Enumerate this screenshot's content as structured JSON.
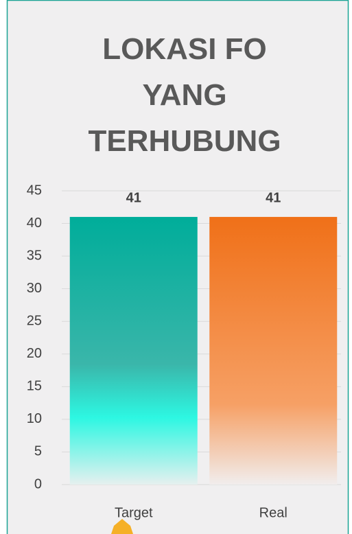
{
  "chart_data": {
    "type": "bar",
    "title": "LOKASI FO YANG TERHUBUNG",
    "categories": [
      "Target",
      "Real"
    ],
    "values": [
      41,
      41
    ],
    "colors": [
      "#00ad9a",
      "#f07018"
    ],
    "ylim": [
      0,
      45
    ],
    "yticks": [
      0,
      5,
      10,
      15,
      20,
      25,
      30,
      35,
      40,
      45
    ],
    "grid": true
  }
}
